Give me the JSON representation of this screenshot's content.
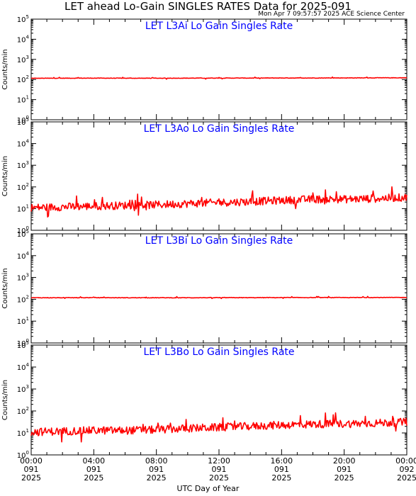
{
  "header": {
    "title": "LET ahead Lo-Gain SINGLES RATES Data for 2025-091",
    "timestamp": "Mon Apr  7 09:57:57 2025 ACE Science Center"
  },
  "xaxis": {
    "title": "UTC Day of Year",
    "ticks": [
      {
        "hours": 0,
        "time": "00:00",
        "doy": "091",
        "year": "2025"
      },
      {
        "hours": 4,
        "time": "04:00",
        "doy": "091",
        "year": "2025"
      },
      {
        "hours": 8,
        "time": "08:00",
        "doy": "091",
        "year": "2025"
      },
      {
        "hours": 12,
        "time": "12:00",
        "doy": "091",
        "year": "2025"
      },
      {
        "hours": 16,
        "time": "16:00",
        "doy": "091",
        "year": "2025"
      },
      {
        "hours": 20,
        "time": "20:00",
        "doy": "091",
        "year": "2025"
      },
      {
        "hours": 24,
        "time": "00:00",
        "doy": "092",
        "year": "2025"
      }
    ]
  },
  "colors": {
    "series": "#ff0000",
    "panel_title": "#0000ff",
    "axes": "#000000",
    "background": "#ffffff"
  },
  "chart_data": [
    {
      "type": "line",
      "title": "LET L3Ai Lo Gain Singles Rate",
      "ylabel": "Counts/min",
      "yscale": "log",
      "ylim": [
        1,
        100000
      ],
      "yticks": [
        1,
        10,
        100,
        1000,
        10000,
        100000
      ],
      "xlim": [
        0,
        24
      ],
      "xunit": "hours UTC, 2025-091",
      "series": [
        {
          "x": [
            0,
            2,
            4,
            6,
            8,
            10,
            12,
            14,
            16,
            18,
            20,
            22,
            24
          ],
          "y": [
            115,
            116,
            117,
            116,
            116,
            117,
            118,
            118,
            119,
            119,
            120,
            121,
            122
          ]
        }
      ]
    },
    {
      "type": "line",
      "title": "LET L3Ao Lo Gain Singles Rate",
      "ylabel": "Counts/min",
      "yscale": "log",
      "ylim": [
        1,
        100000
      ],
      "yticks": [
        1,
        10,
        100,
        1000,
        10000,
        100000
      ],
      "xlim": [
        0,
        24
      ],
      "xunit": "hours UTC, 2025-091",
      "series": [
        {
          "x": [
            0,
            2,
            4,
            6,
            8,
            10,
            12,
            14,
            16,
            18,
            20,
            22,
            24
          ],
          "y": [
            11,
            12,
            13,
            14,
            15,
            17,
            19,
            21,
            24,
            27,
            27,
            29,
            33
          ]
        }
      ]
    },
    {
      "type": "line",
      "title": "LET L3Bi Lo Gain Singles Rate",
      "ylabel": "Counts/min",
      "yscale": "log",
      "ylim": [
        1,
        100000
      ],
      "yticks": [
        1,
        10,
        100,
        1000,
        10000,
        100000
      ],
      "xlim": [
        0,
        24
      ],
      "xunit": "hours UTC, 2025-091",
      "series": [
        {
          "x": [
            0,
            2,
            4,
            6,
            8,
            10,
            12,
            14,
            16,
            18,
            20,
            22,
            24
          ],
          "y": [
            118,
            118,
            119,
            118,
            118,
            118,
            119,
            119,
            120,
            120,
            120,
            121,
            121
          ]
        }
      ]
    },
    {
      "type": "line",
      "title": "LET L3Bo Lo Gain Singles Rate",
      "ylabel": "Counts/min",
      "yscale": "log",
      "ylim": [
        1,
        100000
      ],
      "yticks": [
        1,
        10,
        100,
        1000,
        10000,
        100000
      ],
      "xlim": [
        0,
        24
      ],
      "xunit": "hours UTC, 2025-091",
      "series": [
        {
          "x": [
            0,
            2,
            4,
            6,
            8,
            10,
            12,
            14,
            16,
            18,
            20,
            22,
            24
          ],
          "y": [
            11,
            12,
            13,
            13,
            14,
            16,
            18,
            20,
            23,
            25,
            26,
            28,
            31
          ]
        }
      ]
    }
  ]
}
